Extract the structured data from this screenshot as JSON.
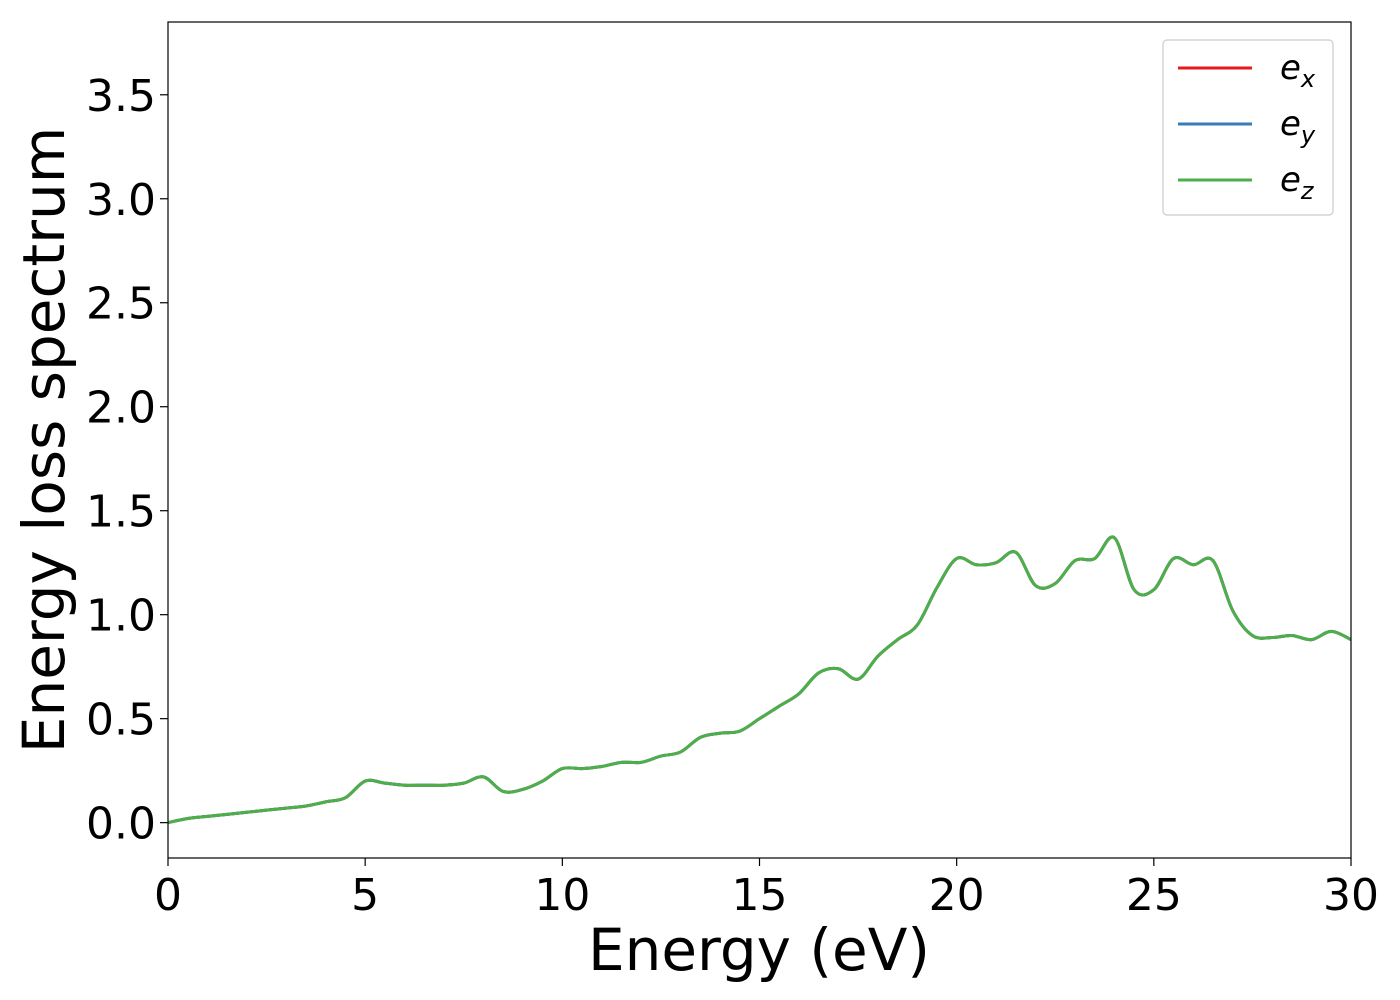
{
  "chart_data": {
    "type": "line",
    "xlabel": "Energy (eV)",
    "ylabel": "Energy loss spectrum",
    "xlim": [
      0,
      30
    ],
    "ylim": [
      -0.17,
      3.85
    ],
    "xticks": [
      0,
      5,
      10,
      15,
      20,
      25,
      30
    ],
    "xtick_labels": [
      "0",
      "5",
      "10",
      "15",
      "20",
      "25",
      "30"
    ],
    "yticks": [
      0.0,
      0.5,
      1.0,
      1.5,
      2.0,
      2.5,
      3.0,
      3.5
    ],
    "ytick_labels": [
      "0.0",
      "0.5",
      "1.0",
      "1.5",
      "2.0",
      "2.5",
      "3.0",
      "3.5"
    ],
    "grid": false,
    "legend_position": "top-right",
    "x": [
      0,
      0.5,
      1,
      1.5,
      2,
      2.5,
      3,
      3.5,
      4,
      4.5,
      5,
      5.5,
      6,
      6.5,
      7,
      7.5,
      8,
      8.5,
      9,
      9.5,
      10,
      10.5,
      11,
      11.5,
      12,
      12.5,
      13,
      13.5,
      14,
      14.5,
      15,
      15.5,
      16,
      16.5,
      17,
      17.5,
      18,
      18.5,
      19,
      19.5,
      20,
      20.5,
      21,
      21.5,
      22,
      22.5,
      23,
      23.5,
      24,
      24.5,
      25,
      25.5,
      26,
      26.5,
      27,
      27.5,
      28,
      28.5,
      29,
      29.5,
      30
    ],
    "series": [
      {
        "name": "e",
        "name_sub": "x",
        "color": "#e41a1c",
        "values": [
          0.0,
          0.02,
          0.03,
          0.04,
          0.05,
          0.06,
          0.07,
          0.08,
          0.1,
          0.12,
          0.2,
          0.19,
          0.18,
          0.18,
          0.18,
          0.19,
          0.22,
          0.15,
          0.16,
          0.2,
          0.26,
          0.26,
          0.27,
          0.29,
          0.29,
          0.32,
          0.34,
          0.41,
          0.43,
          0.44,
          0.5,
          0.56,
          0.62,
          0.72,
          0.74,
          0.69,
          0.8,
          0.88,
          0.95,
          1.13,
          1.27,
          1.24,
          1.25,
          1.3,
          1.14,
          1.15,
          1.26,
          1.27,
          1.37,
          1.12,
          1.12,
          1.27,
          1.24,
          1.26,
          1.02,
          0.9,
          0.89,
          0.9,
          0.88,
          0.92,
          0.88
        ]
      },
      {
        "name": "e",
        "name_sub": "y",
        "color": "#377eb8",
        "values": [
          0.0,
          0.02,
          0.03,
          0.04,
          0.05,
          0.06,
          0.07,
          0.08,
          0.1,
          0.12,
          0.2,
          0.19,
          0.18,
          0.18,
          0.18,
          0.19,
          0.22,
          0.15,
          0.16,
          0.2,
          0.26,
          0.26,
          0.27,
          0.29,
          0.29,
          0.32,
          0.34,
          0.41,
          0.43,
          0.44,
          0.5,
          0.56,
          0.62,
          0.72,
          0.74,
          0.69,
          0.8,
          0.88,
          0.95,
          1.13,
          1.27,
          1.24,
          1.25,
          1.3,
          1.14,
          1.15,
          1.26,
          1.27,
          1.37,
          1.12,
          1.12,
          1.27,
          1.24,
          1.26,
          1.02,
          0.9,
          0.89,
          0.9,
          0.88,
          0.92,
          0.88
        ]
      },
      {
        "name": "e",
        "name_sub": "z",
        "color": "#4daf4a",
        "values": [
          0.0,
          0.02,
          0.03,
          0.04,
          0.05,
          0.06,
          0.07,
          0.08,
          0.1,
          0.12,
          0.2,
          0.19,
          0.18,
          0.18,
          0.18,
          0.19,
          0.22,
          0.15,
          0.16,
          0.2,
          0.26,
          0.26,
          0.27,
          0.29,
          0.29,
          0.32,
          0.34,
          0.41,
          0.43,
          0.44,
          0.5,
          0.56,
          0.62,
          0.72,
          0.74,
          0.69,
          0.8,
          0.88,
          0.95,
          1.13,
          1.27,
          1.24,
          1.25,
          1.3,
          1.14,
          1.15,
          1.26,
          1.27,
          1.37,
          1.12,
          1.12,
          1.27,
          1.24,
          1.26,
          1.02,
          0.9,
          0.89,
          0.9,
          0.88,
          0.92,
          0.88
        ]
      }
    ]
  }
}
